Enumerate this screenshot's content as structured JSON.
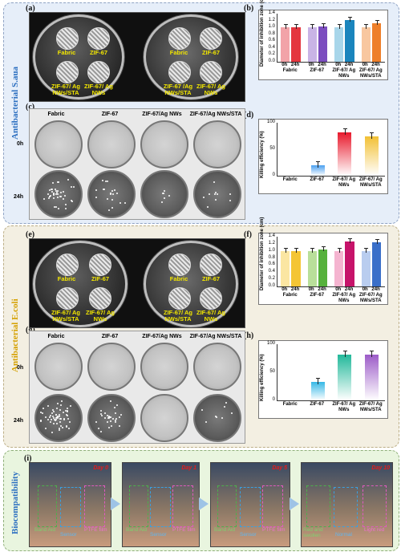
{
  "section_labels": {
    "a": "Antibacterial  S.aua",
    "e": "Antibacterial  E.coli",
    "i": "Biocompatibility"
  },
  "panels": {
    "a": "(a)",
    "b": "(b)",
    "c": "(c)",
    "d": "(d)",
    "e": "(e)",
    "f": "(f)",
    "g": "(g)",
    "h": "(h)",
    "i": "(i)"
  },
  "plate_labels": {
    "fabric": "Fabric",
    "zif": "ZIF-67",
    "sta": "ZIF-67/ Ag NWs/STA",
    "ag": "ZIF-67/ Ag NWs",
    "sta2": "ZIF-67 /Ag NWs/STA",
    "ag2": "ZIF-67/ Ag NWs"
  },
  "grid_cols": [
    "Fabric",
    "ZIF-67",
    "ZIF-67/Ag NWs",
    "ZIF-67/Ag NWs/STA"
  ],
  "grid_rows": [
    "0h",
    "24h"
  ],
  "biocomp": {
    "days": [
      "Day 0",
      "Day 1",
      "Day 5",
      "Day 10"
    ],
    "labels": [
      "Band Aid",
      "Sensor",
      "PTFE film"
    ],
    "labels_day10": [
      "Red and swollen",
      "Normal",
      "Light red"
    ]
  },
  "chart_data": [
    {
      "id": "b",
      "type": "bar",
      "ylabel": "Diameter of inhibition zone (cm)",
      "yticks": [
        "0.0",
        "0.2",
        "0.4",
        "0.6",
        "0.8",
        "1.0",
        "1.2",
        "1.4"
      ],
      "ylim": [
        0,
        1.4
      ],
      "categories": [
        "Fabric",
        "ZIF-67",
        "ZIF-67/ Ag NWs",
        "ZIF-67/ Ag NWs/STA"
      ],
      "x_sub": [
        "0h",
        "24h"
      ],
      "values": [
        [
          1.0,
          1.0
        ],
        [
          1.0,
          1.02
        ],
        [
          1.0,
          1.22
        ],
        [
          1.0,
          1.12
        ]
      ],
      "colors": [
        [
          "#f2a3a8",
          "#e4363f"
        ],
        [
          "#c9b4e6",
          "#7b4dbf"
        ],
        [
          "#a8d6ea",
          "#1a85bd"
        ],
        [
          "#f8c7a0",
          "#ee7f2a"
        ]
      ]
    },
    {
      "id": "d",
      "type": "bar",
      "ylabel": "Killing efficiency (%)",
      "yticks": [
        "0",
        "50",
        "100"
      ],
      "ylim": [
        0,
        120
      ],
      "categories": [
        "Fabric",
        "ZIF-67",
        "ZIF-67/ Ag NWs",
        "ZIF-67/ Ag NWs/STA"
      ],
      "values": [
        0,
        24,
        98,
        89
      ],
      "colors": [
        "#ffffff",
        "#4aa0f0",
        "#e8192c",
        "#f2c034"
      ]
    },
    {
      "id": "f",
      "type": "bar",
      "ylabel": "Diameter of inhibition zone (cm)",
      "yticks": [
        "0.0",
        "0.2",
        "0.4",
        "0.6",
        "0.8",
        "1.0",
        "1.2",
        "1.4"
      ],
      "ylim": [
        0,
        1.4
      ],
      "categories": [
        "Fabric",
        "ZIF-67",
        "ZIF-67/ Ag NWs",
        "ZIF-67/ Ag NWs/STA"
      ],
      "x_sub": [
        "0h",
        "24h"
      ],
      "values": [
        [
          1.0,
          1.0
        ],
        [
          1.0,
          1.04
        ],
        [
          1.0,
          1.26
        ],
        [
          1.0,
          1.24
        ]
      ],
      "colors": [
        [
          "#fbe6a2",
          "#f4c535"
        ],
        [
          "#b9df9a",
          "#56b13c"
        ],
        [
          "#f5b4d0",
          "#c6136a"
        ],
        [
          "#b9cdef",
          "#3a6fc9"
        ]
      ]
    },
    {
      "id": "h",
      "type": "bar",
      "ylabel": "Killing efficiency (%)",
      "yticks": [
        "0",
        "50",
        "100"
      ],
      "ylim": [
        0,
        120
      ],
      "categories": [
        "Fabric",
        "ZIF-67",
        "ZIF-67/ Ag NWs",
        "ZIF-67/ Ag NWs/STA"
      ],
      "values": [
        0,
        40,
        97,
        97
      ],
      "colors": [
        "#ffffff",
        "#35b8e6",
        "#22b89a",
        "#9c5cc8"
      ]
    }
  ]
}
